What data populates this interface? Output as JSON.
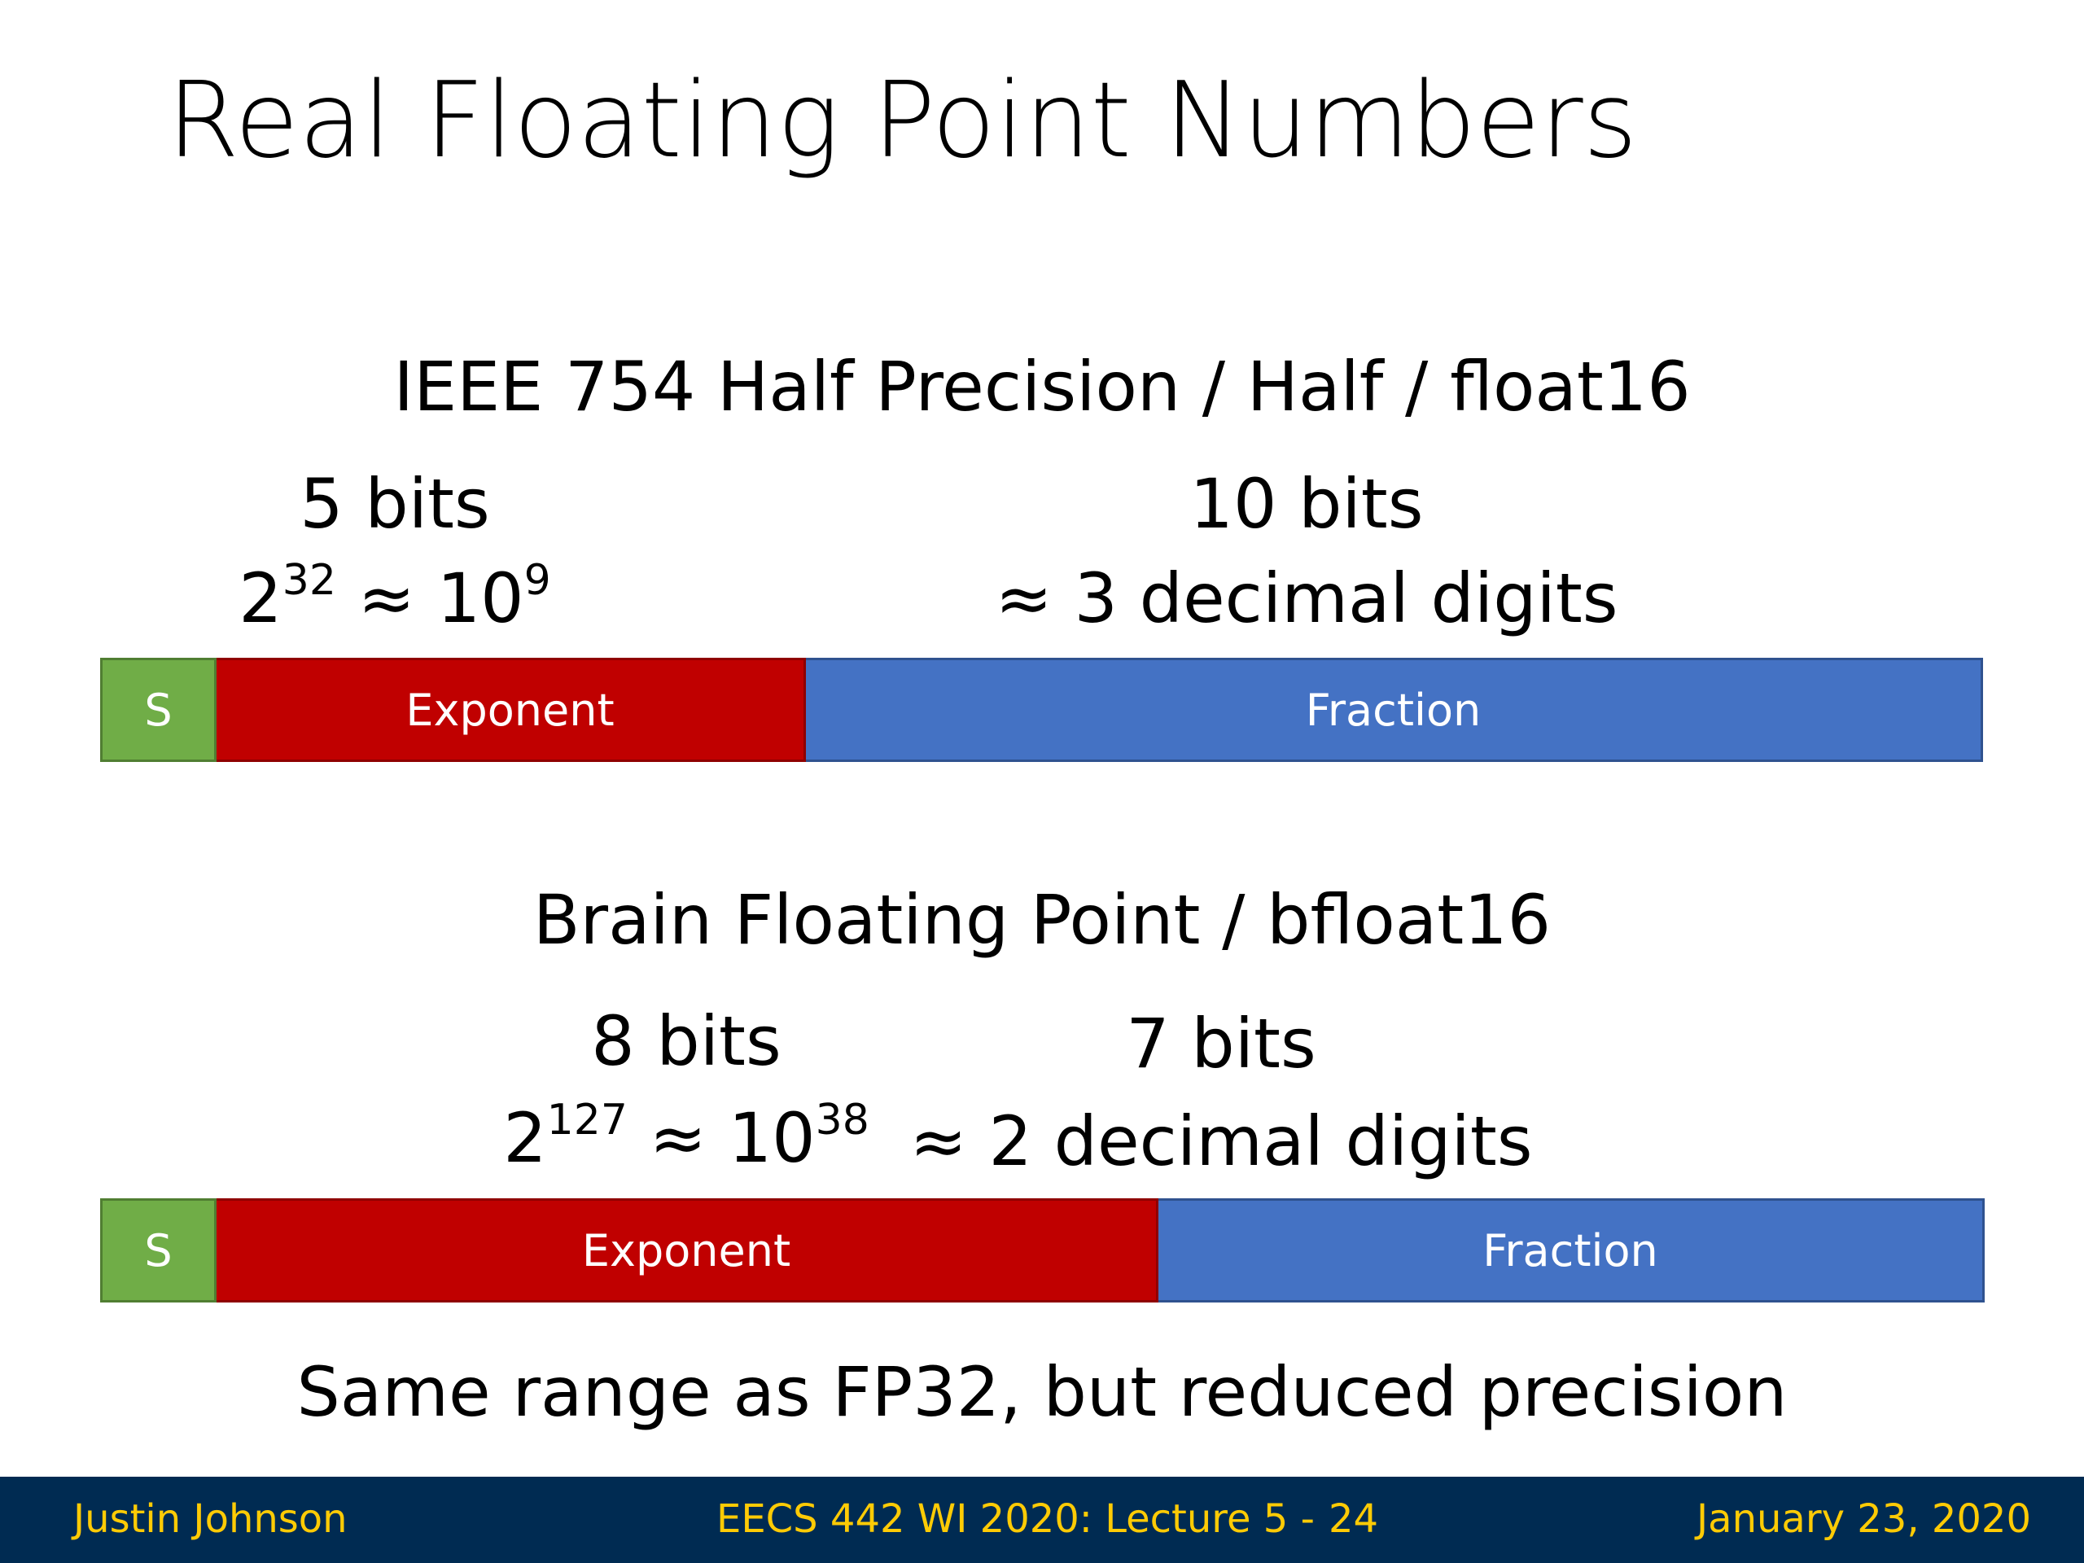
{
  "slide": {
    "title": "Real Floating Point Numbers"
  },
  "half": {
    "heading": "IEEE 754 Half Precision / Half / float16",
    "exponent": {
      "bits": "5 bits",
      "range_base": "2",
      "range_base_exp": "32",
      "range_approx": " ≈ 10",
      "range_approx_exp": "9"
    },
    "fraction": {
      "bits": "10 bits",
      "precision": "≈ 3 decimal digits"
    },
    "bar": {
      "sign_label": "S",
      "exponent_label": "Exponent",
      "fraction_label": "Fraction"
    }
  },
  "bfloat": {
    "heading": "Brain Floating Point / bfloat16",
    "exponent": {
      "bits": "8 bits",
      "range_base": "2",
      "range_base_exp": "127",
      "range_approx": " ≈ 10",
      "range_approx_exp": "38"
    },
    "fraction": {
      "bits": "7 bits",
      "precision": "≈ 2 decimal digits"
    },
    "bar": {
      "sign_label": "S",
      "exponent_label": "Exponent",
      "fraction_label": "Fraction"
    }
  },
  "conclusion": "Same range as FP32, but reduced precision",
  "footer": {
    "author": "Justin Johnson",
    "course": "EECS 442 WI 2020: Lecture 5 -",
    "page_number": "24",
    "date": "January 23, 2020"
  },
  "colors": {
    "sign": "#70ad47",
    "exponent": "#c00000",
    "fraction": "#4472c4",
    "footer_bg": "#002b52",
    "footer_text": "#ffcb05"
  }
}
